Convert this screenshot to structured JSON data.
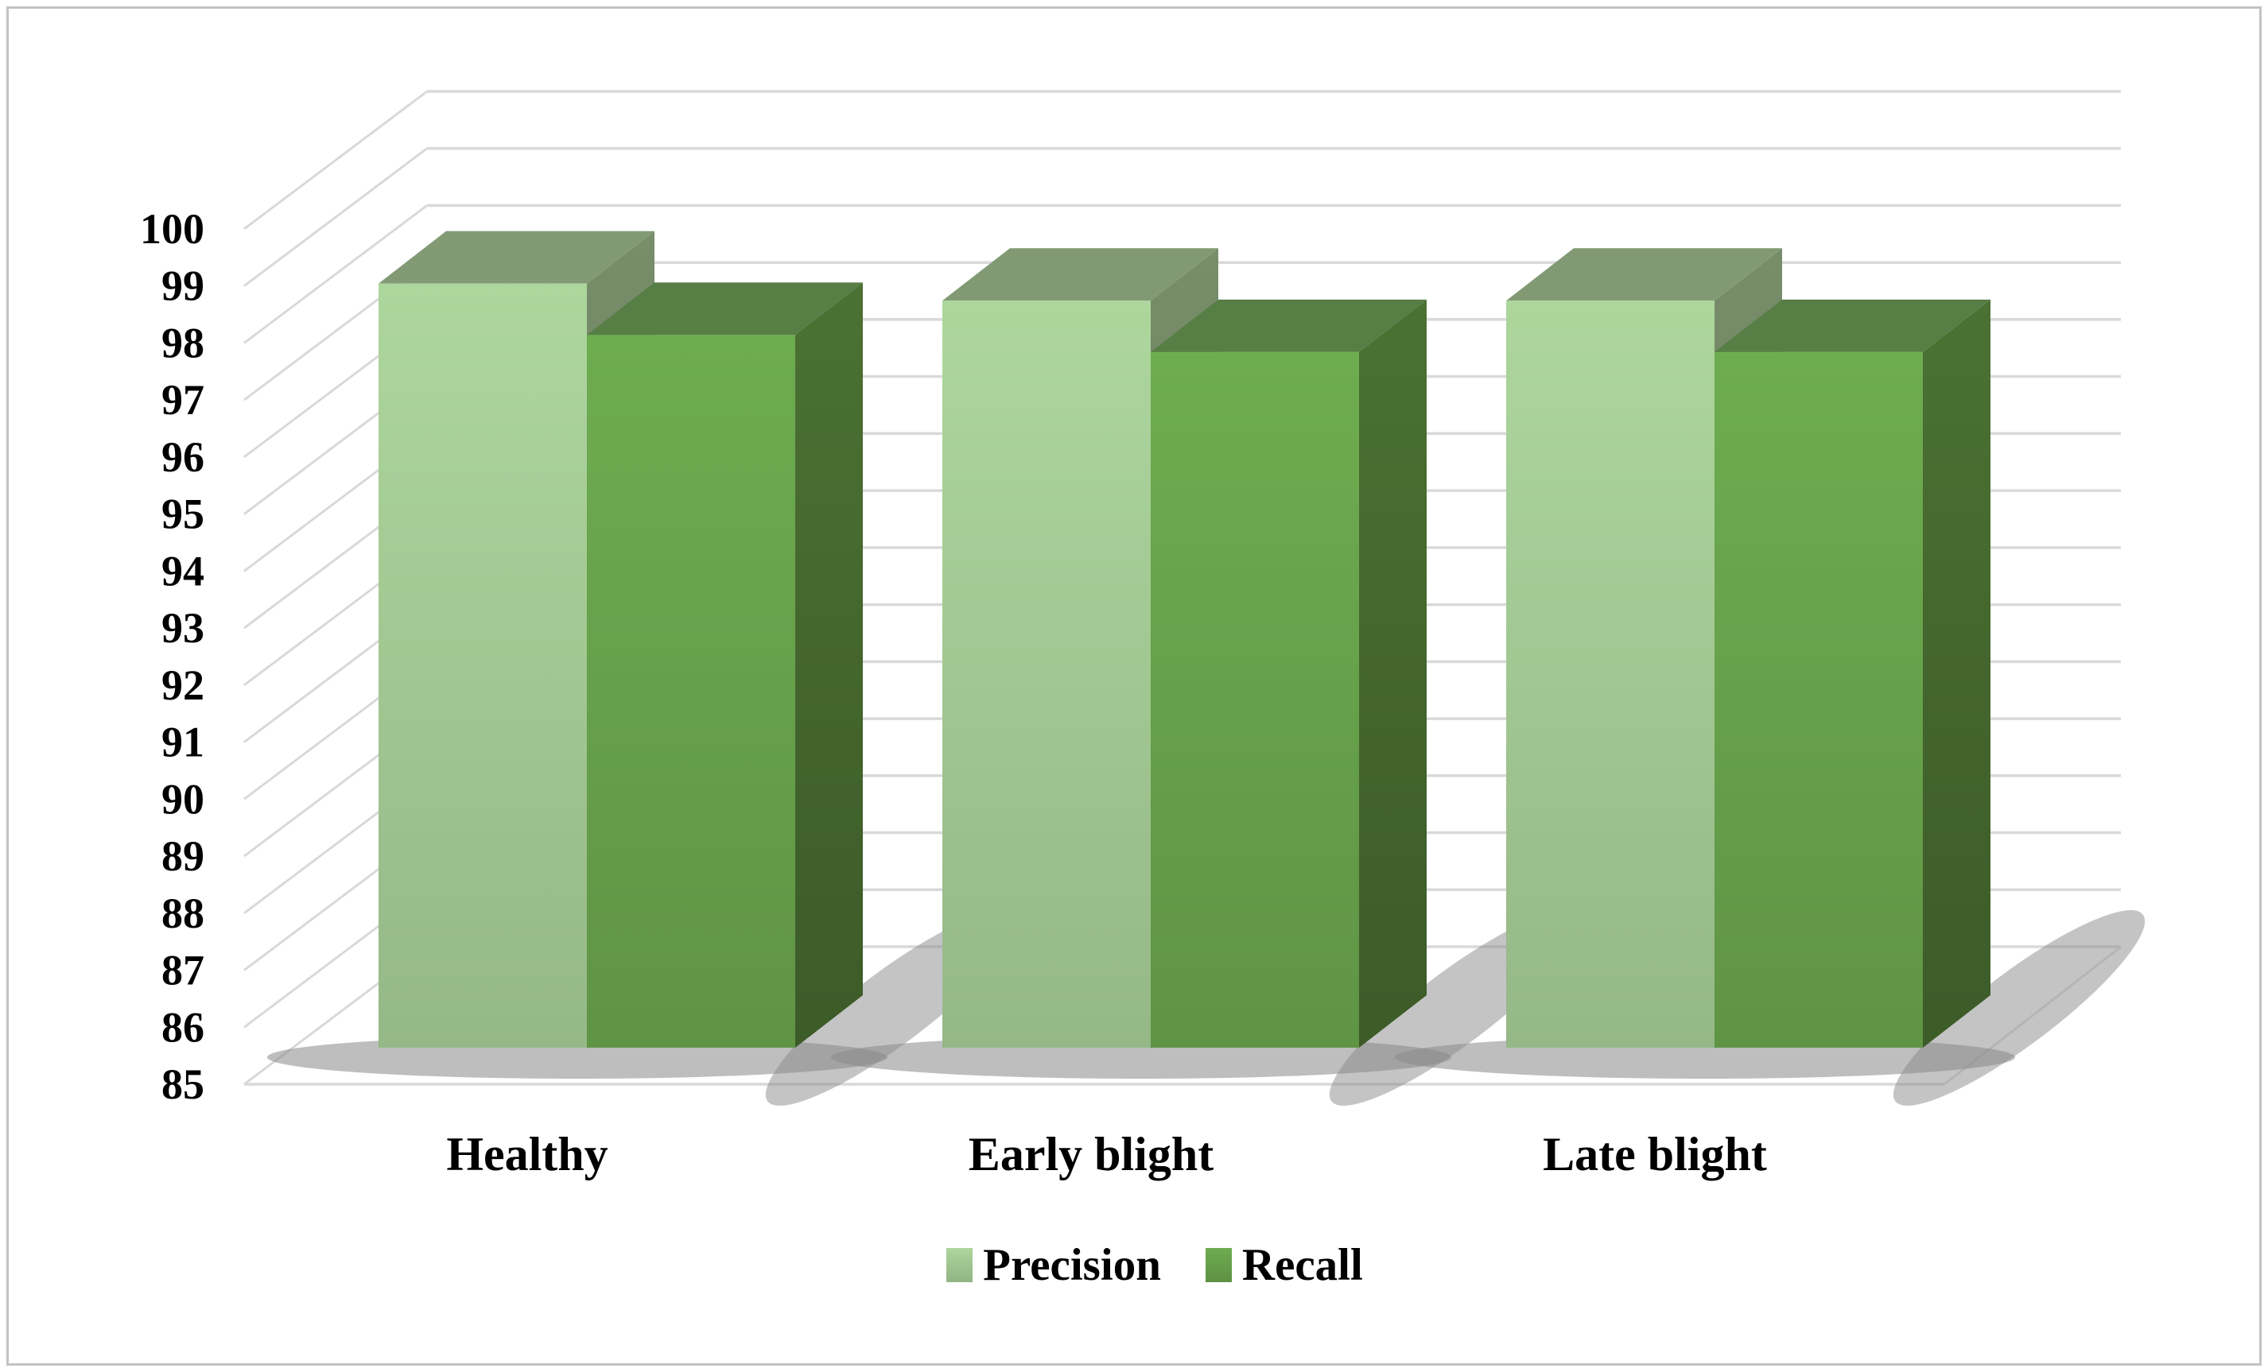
{
  "chart_data": {
    "type": "bar",
    "style": "3d-clustered-column",
    "title": "",
    "categories": [
      "Healthy",
      "Early blight",
      "Late blight"
    ],
    "series": [
      {
        "name": "Precision",
        "color": "#a2c893",
        "top_color": "#819a74",
        "side_color": "#6d8160",
        "values": [
          98.4,
          98.1,
          98.1
        ]
      },
      {
        "name": "Recall",
        "color": "#67a14b",
        "top_color": "#577e45",
        "side_color": "#44672e",
        "values": [
          97.5,
          97.2,
          97.2
        ]
      }
    ],
    "ylim": [
      85,
      100
    ],
    "ytick_step": 1,
    "ytick_labels": [
      "85",
      "86",
      "87",
      "88",
      "89",
      "90",
      "91",
      "92",
      "93",
      "94",
      "95",
      "96",
      "97",
      "98",
      "99",
      "100"
    ],
    "grid": true,
    "gridline_color": "#d9d9d9",
    "legend_position": "bottom",
    "background": "#ffffff",
    "border_color": "#c3c3c3",
    "text_color": "#000000"
  }
}
